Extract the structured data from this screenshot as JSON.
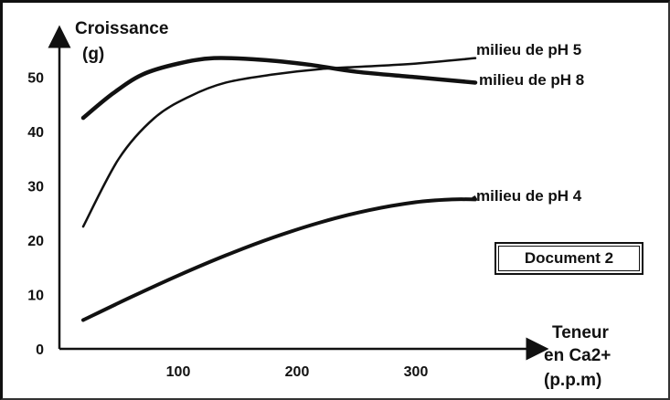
{
  "document_label": "Document 2",
  "chart_data": {
    "type": "line",
    "ylabel_line1": "Croissance",
    "ylabel_line2": "(g)",
    "xlabel_line1": "Teneur",
    "xlabel_line2": "en Ca2+",
    "xlabel_line3": "(p.p.m)",
    "xlim": [
      0,
      400
    ],
    "ylim": [
      0,
      58
    ],
    "x_ticks": [
      100,
      200,
      300
    ],
    "y_ticks": [
      0,
      10,
      20,
      30,
      40,
      50
    ],
    "grid": false,
    "series": [
      {
        "name": "milieu de pH 5",
        "x": [
          20,
          50,
          80,
          110,
          140,
          180,
          220,
          260,
          300,
          350
        ],
        "y": [
          22.5,
          35,
          42.5,
          46.5,
          49,
          50.5,
          51.5,
          52,
          52.5,
          53.5
        ],
        "stroke": 2.5
      },
      {
        "name": "milieu de pH 8",
        "x": [
          20,
          45,
          70,
          100,
          130,
          170,
          210,
          250,
          300,
          350
        ],
        "y": [
          42.5,
          47,
          50.5,
          52.5,
          53.5,
          53.2,
          52.3,
          51,
          50,
          49
        ],
        "stroke": 4.5
      },
      {
        "name": "milieu de pH 4",
        "x": [
          20,
          60,
          100,
          140,
          180,
          220,
          260,
          300,
          330,
          350
        ],
        "y": [
          5.3,
          9.5,
          13.5,
          17.2,
          20.5,
          23.3,
          25.5,
          27,
          27.5,
          27.5
        ],
        "stroke": 4
      }
    ]
  }
}
